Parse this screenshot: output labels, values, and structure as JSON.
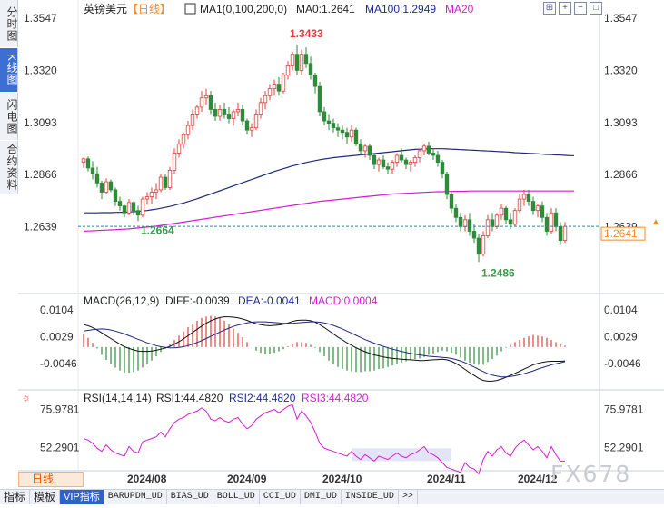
{
  "side_tabs": [
    "分时图",
    "K线图",
    "闪电图",
    "合约资料"
  ],
  "header": {
    "title": "英镑美元",
    "period": "【日线】",
    "ma_label": "MA1(0,100,200,0)",
    "ma0": "MA0:1.2641",
    "ma100": "MA100:1.2949",
    "ma20": "MA20"
  },
  "macd_header": {
    "name": "MACD(26,12,9)",
    "diff": "DIFF:-0.0039",
    "dea": "DEA:-0.0041",
    "macd": "MACD:0.0004"
  },
  "rsi_header": {
    "name": "RSI(14,14,14)",
    "rsi1": "RSI1:44.4820",
    "rsi2": "RSI2:44.4820",
    "rsi3": "RSI3:44.4820"
  },
  "period_button": "日线",
  "watermark": "FX678",
  "bottom_tabs": [
    "指标",
    "模板",
    "VIP指标",
    "BARUPDN_UD",
    "BIAS_UD",
    "BOLL_UD",
    "CCI_UD",
    "DMI_UD",
    "INSIDE_UD",
    ">>"
  ],
  "chart_data": {
    "type": "candlestick",
    "title": "英镑美元",
    "price_ticks": [
      "1.3547",
      "1.3320",
      "1.3093",
      "1.2866",
      "1.2639"
    ],
    "price_range": [
      1.244,
      1.3547
    ],
    "current_price": "1.2641",
    "high_label": "1.3433",
    "low_label": "1.2486",
    "start_low_label": "1.2664",
    "x_labels": [
      "2024/08",
      "2024/09",
      "2024/10",
      "2024/11",
      "2024/12"
    ],
    "candles": [
      [
        1.292,
        1.294,
        1.2895,
        1.2935
      ],
      [
        1.2935,
        1.2945,
        1.288,
        1.2895
      ],
      [
        1.2895,
        1.2925,
        1.2845,
        1.287
      ],
      [
        1.287,
        1.29,
        1.281,
        1.283
      ],
      [
        1.283,
        1.284,
        1.276,
        1.279
      ],
      [
        1.279,
        1.285,
        1.278,
        1.2835
      ],
      [
        1.2835,
        1.2845,
        1.279,
        1.28
      ],
      [
        1.28,
        1.281,
        1.273,
        1.275
      ],
      [
        1.275,
        1.277,
        1.271,
        1.273
      ],
      [
        1.273,
        1.2735,
        1.268,
        1.27
      ],
      [
        1.27,
        1.276,
        1.269,
        1.2745
      ],
      [
        1.2745,
        1.275,
        1.269,
        1.271
      ],
      [
        1.271,
        1.273,
        1.2664,
        1.269
      ],
      [
        1.269,
        1.277,
        1.268,
        1.276
      ],
      [
        1.276,
        1.279,
        1.2735,
        1.277
      ],
      [
        1.277,
        1.281,
        1.274,
        1.279
      ],
      [
        1.279,
        1.283,
        1.276,
        1.28
      ],
      [
        1.28,
        1.287,
        1.279,
        1.2855
      ],
      [
        1.2855,
        1.287,
        1.28,
        1.281
      ],
      [
        1.281,
        1.29,
        1.28,
        1.2885
      ],
      [
        1.2885,
        1.298,
        1.287,
        1.296
      ],
      [
        1.296,
        1.302,
        1.294,
        1.3
      ],
      [
        1.3,
        1.305,
        1.298,
        1.304
      ],
      [
        1.304,
        1.31,
        1.302,
        1.308
      ],
      [
        1.308,
        1.315,
        1.306,
        1.313
      ],
      [
        1.313,
        1.317,
        1.311,
        1.316
      ],
      [
        1.316,
        1.323,
        1.314,
        1.32
      ],
      [
        1.32,
        1.324,
        1.317,
        1.321
      ],
      [
        1.321,
        1.323,
        1.313,
        1.315
      ],
      [
        1.315,
        1.318,
        1.31,
        1.312
      ],
      [
        1.312,
        1.317,
        1.31,
        1.315
      ],
      [
        1.315,
        1.318,
        1.311,
        1.313
      ],
      [
        1.313,
        1.316,
        1.309,
        1.311
      ],
      [
        1.311,
        1.315,
        1.308,
        1.314
      ],
      [
        1.314,
        1.318,
        1.312,
        1.315
      ],
      [
        1.315,
        1.317,
        1.308,
        1.31
      ],
      [
        1.31,
        1.311,
        1.304,
        1.306
      ],
      [
        1.306,
        1.309,
        1.303,
        1.307
      ],
      [
        1.307,
        1.315,
        1.306,
        1.313
      ],
      [
        1.313,
        1.32,
        1.311,
        1.318
      ],
      [
        1.318,
        1.323,
        1.315,
        1.321
      ],
      [
        1.321,
        1.326,
        1.319,
        1.324
      ],
      [
        1.324,
        1.328,
        1.321,
        1.326
      ],
      [
        1.326,
        1.329,
        1.321,
        1.323
      ],
      [
        1.323,
        1.331,
        1.322,
        1.33
      ],
      [
        1.33,
        1.336,
        1.328,
        1.334
      ],
      [
        1.334,
        1.34,
        1.332,
        1.339
      ],
      [
        1.339,
        1.3433,
        1.33,
        1.332
      ],
      [
        1.332,
        1.341,
        1.33,
        1.339
      ],
      [
        1.339,
        1.342,
        1.333,
        1.335
      ],
      [
        1.335,
        1.338,
        1.328,
        1.33
      ],
      [
        1.33,
        1.331,
        1.322,
        1.325
      ],
      [
        1.325,
        1.327,
        1.312,
        1.314
      ],
      [
        1.314,
        1.316,
        1.308,
        1.31
      ],
      [
        1.31,
        1.313,
        1.306,
        1.309
      ],
      [
        1.309,
        1.311,
        1.305,
        1.307
      ],
      [
        1.307,
        1.309,
        1.303,
        1.306
      ],
      [
        1.306,
        1.308,
        1.302,
        1.305
      ],
      [
        1.305,
        1.307,
        1.3,
        1.303
      ],
      [
        1.303,
        1.308,
        1.301,
        1.306
      ],
      [
        1.306,
        1.307,
        1.299,
        1.3
      ],
      [
        1.3,
        1.302,
        1.295,
        1.297
      ],
      [
        1.297,
        1.3,
        1.294,
        1.299
      ],
      [
        1.299,
        1.3,
        1.293,
        1.295
      ],
      [
        1.295,
        1.296,
        1.289,
        1.291
      ],
      [
        1.291,
        1.294,
        1.288,
        1.293
      ],
      [
        1.293,
        1.295,
        1.289,
        1.29
      ],
      [
        1.29,
        1.292,
        1.287,
        1.289
      ],
      [
        1.289,
        1.293,
        1.287,
        1.292
      ],
      [
        1.292,
        1.296,
        1.29,
        1.295
      ],
      [
        1.295,
        1.298,
        1.292,
        1.293
      ],
      [
        1.293,
        1.294,
        1.289,
        1.291
      ],
      [
        1.291,
        1.293,
        1.288,
        1.292
      ],
      [
        1.292,
        1.295,
        1.29,
        1.294
      ],
      [
        1.294,
        1.298,
        1.292,
        1.297
      ],
      [
        1.297,
        1.3,
        1.295,
        1.299
      ],
      [
        1.299,
        1.301,
        1.295,
        1.296
      ],
      [
        1.296,
        1.298,
        1.293,
        1.295
      ],
      [
        1.295,
        1.297,
        1.29,
        1.292
      ],
      [
        1.292,
        1.293,
        1.285,
        1.287
      ],
      [
        1.287,
        1.288,
        1.276,
        1.278
      ],
      [
        1.278,
        1.279,
        1.27,
        1.272
      ],
      [
        1.272,
        1.274,
        1.266,
        1.268
      ],
      [
        1.268,
        1.27,
        1.262,
        1.264
      ],
      [
        1.264,
        1.269,
        1.262,
        1.267
      ],
      [
        1.267,
        1.27,
        1.26,
        1.262
      ],
      [
        1.262,
        1.265,
        1.257,
        1.259
      ],
      [
        1.259,
        1.261,
        1.2486,
        1.252
      ],
      [
        1.252,
        1.262,
        1.251,
        1.26
      ],
      [
        1.26,
        1.269,
        1.259,
        1.267
      ],
      [
        1.267,
        1.27,
        1.262,
        1.264
      ],
      [
        1.264,
        1.27,
        1.263,
        1.269
      ],
      [
        1.269,
        1.274,
        1.267,
        1.272
      ],
      [
        1.272,
        1.273,
        1.265,
        1.267
      ],
      [
        1.267,
        1.27,
        1.263,
        1.265
      ],
      [
        1.265,
        1.272,
        1.264,
        1.271
      ],
      [
        1.271,
        1.278,
        1.27,
        1.276
      ],
      [
        1.276,
        1.28,
        1.273,
        1.278
      ],
      [
        1.278,
        1.28,
        1.273,
        1.275
      ],
      [
        1.275,
        1.277,
        1.269,
        1.271
      ],
      [
        1.271,
        1.274,
        1.268,
        1.273
      ],
      [
        1.273,
        1.275,
        1.266,
        1.268
      ],
      [
        1.268,
        1.27,
        1.26,
        1.262
      ],
      [
        1.262,
        1.272,
        1.261,
        1.27
      ],
      [
        1.27,
        1.272,
        1.262,
        1.264
      ],
      [
        1.264,
        1.266,
        1.256,
        1.258
      ],
      [
        1.258,
        1.266,
        1.257,
        1.2641
      ]
    ],
    "ma100": [
      1.27,
      1.27,
      1.27,
      1.27,
      1.2701,
      1.2701,
      1.2701,
      1.2702,
      1.2702,
      1.2703,
      1.2704,
      1.2705,
      1.2706,
      1.2708,
      1.271,
      1.2713,
      1.2716,
      1.272,
      1.2724,
      1.2728,
      1.2733,
      1.2738,
      1.2743,
      1.2749,
      1.2755,
      1.2761,
      1.2768,
      1.2775,
      1.2782,
      1.2789,
      1.2796,
      1.2803,
      1.281,
      1.2817,
      1.2824,
      1.2831,
      1.2838,
      1.2845,
      1.2852,
      1.2859,
      1.2866,
      1.2873,
      1.288,
      1.2886,
      1.2892,
      1.2898,
      1.2904,
      1.2909,
      1.2914,
      1.2919,
      1.2923,
      1.2927,
      1.2931,
      1.2934,
      1.2937,
      1.294,
      1.2942,
      1.2944,
      1.2946,
      1.2948,
      1.295,
      1.2952,
      1.2954,
      1.2956,
      1.2958,
      1.296,
      1.2962,
      1.2964,
      1.2966,
      1.2968,
      1.297,
      1.2972,
      1.2974,
      1.2976,
      1.2977,
      1.2978,
      1.2979,
      1.2979,
      1.2979,
      1.2979,
      1.2978,
      1.2977,
      1.2976,
      1.2975,
      1.2974,
      1.2973,
      1.2972,
      1.2971,
      1.297,
      1.2969,
      1.2968,
      1.2967,
      1.2966,
      1.2965,
      1.2964,
      1.2962,
      1.2961,
      1.296,
      1.2959,
      1.2958,
      1.2957,
      1.2955,
      1.2954,
      1.2953,
      1.2952,
      1.2951,
      1.295,
      1.2949,
      1.2949
    ],
    "ma200": [
      1.262,
      1.2621,
      1.2622,
      1.2623,
      1.2624,
      1.2625,
      1.2626,
      1.2627,
      1.2628,
      1.2629,
      1.263,
      1.2632,
      1.2634,
      1.2636,
      1.2638,
      1.264,
      1.2642,
      1.2645,
      1.2648,
      1.2651,
      1.2654,
      1.2657,
      1.266,
      1.2663,
      1.2666,
      1.2669,
      1.2672,
      1.2675,
      1.2678,
      1.2681,
      1.2684,
      1.2687,
      1.269,
      1.2693,
      1.2696,
      1.2699,
      1.2702,
      1.2705,
      1.2708,
      1.2711,
      1.2714,
      1.2717,
      1.272,
      1.2723,
      1.2726,
      1.2729,
      1.2732,
      1.2735,
      1.2738,
      1.2741,
      1.2744,
      1.2747,
      1.275,
      1.2752,
      1.2754,
      1.2756,
      1.2758,
      1.276,
      1.2762,
      1.2764,
      1.2766,
      1.2768,
      1.277,
      1.2772,
      1.2774,
      1.2776,
      1.2778,
      1.278,
      1.2782,
      1.2783,
      1.2784,
      1.2785,
      1.2786,
      1.2787,
      1.2788,
      1.2789,
      1.279,
      1.2791,
      1.2792,
      1.2792,
      1.2793,
      1.2793,
      1.2794,
      1.2794,
      1.2794,
      1.2795,
      1.2795,
      1.2795,
      1.2795,
      1.2795,
      1.2795,
      1.2795,
      1.2795,
      1.2795,
      1.2795,
      1.2795,
      1.2795,
      1.2795,
      1.2795,
      1.2795,
      1.2795,
      1.2795,
      1.2795,
      1.2795,
      1.2795,
      1.2795,
      1.2795,
      1.2795,
      1.2795
    ],
    "macd_ticks": [
      "0.0104",
      "0.0029",
      "-0.0046"
    ],
    "macd_range": [
      -0.0118,
      0.0125
    ],
    "macd_diff": [
      0.0063,
      0.006,
      0.0055,
      0.0048,
      0.004,
      0.0032,
      0.0024,
      0.0016,
      0.0008,
      0.0001,
      -0.0004,
      -0.0008,
      -0.0011,
      -0.0012,
      -0.0012,
      -0.0011,
      -0.0009,
      -0.0006,
      -0.0003,
      0.0002,
      0.0008,
      0.0015,
      0.0023,
      0.0032,
      0.0041,
      0.005,
      0.0059,
      0.0067,
      0.0074,
      0.0079,
      0.0083,
      0.0085,
      0.0085,
      0.0084,
      0.0082,
      0.0079,
      0.0075,
      0.007,
      0.0066,
      0.0063,
      0.0061,
      0.006,
      0.0061,
      0.0062,
      0.0064,
      0.0068,
      0.0072,
      0.0075,
      0.0076,
      0.0076,
      0.0074,
      0.007,
      0.0063,
      0.0055,
      0.0046,
      0.0037,
      0.0028,
      0.002,
      0.0012,
      0.0005,
      -0.0002,
      -0.0008,
      -0.0013,
      -0.0018,
      -0.0022,
      -0.0025,
      -0.0028,
      -0.003,
      -0.0032,
      -0.0033,
      -0.0034,
      -0.0035,
      -0.0036,
      -0.0037,
      -0.0038,
      -0.0038,
      -0.0037,
      -0.0036,
      -0.0035,
      -0.0034,
      -0.0036,
      -0.004,
      -0.0046,
      -0.0054,
      -0.0063,
      -0.0072,
      -0.008,
      -0.0088,
      -0.0094,
      -0.0096,
      -0.0096,
      -0.0094,
      -0.009,
      -0.0085,
      -0.008,
      -0.0074,
      -0.0068,
      -0.0062,
      -0.0056,
      -0.005,
      -0.0046,
      -0.0043,
      -0.0041,
      -0.004,
      -0.004,
      -0.004,
      -0.0039
    ],
    "macd_dea": [
      0.0045,
      0.0047,
      0.0049,
      0.005,
      0.0051,
      0.005,
      0.0048,
      0.0045,
      0.0041,
      0.0037,
      0.0032,
      0.0027,
      0.0022,
      0.0017,
      0.0012,
      0.0008,
      0.0004,
      0.0001,
      -0.0001,
      -0.0002,
      -0.0002,
      -0.0001,
      0.0001,
      0.0004,
      0.0008,
      0.0013,
      0.0018,
      0.0024,
      0.003,
      0.0036,
      0.0042,
      0.0048,
      0.0053,
      0.0058,
      0.0062,
      0.0065,
      0.0068,
      0.007,
      0.0071,
      0.0071,
      0.0071,
      0.007,
      0.0069,
      0.0068,
      0.0067,
      0.0067,
      0.0067,
      0.0068,
      0.0069,
      0.007,
      0.0071,
      0.0071,
      0.007,
      0.0068,
      0.0065,
      0.0061,
      0.0056,
      0.0051,
      0.0045,
      0.0039,
      0.0033,
      0.0027,
      0.0021,
      0.0016,
      0.0011,
      0.0006,
      0.0002,
      -0.0002,
      -0.0006,
      -0.0009,
      -0.0012,
      -0.0015,
      -0.0018,
      -0.002,
      -0.0022,
      -0.0024,
      -0.0026,
      -0.0027,
      -0.0028,
      -0.0029,
      -0.003,
      -0.0032,
      -0.0035,
      -0.0039,
      -0.0044,
      -0.005,
      -0.0056,
      -0.0063,
      -0.0069,
      -0.0075,
      -0.0079,
      -0.0082,
      -0.0084,
      -0.0084,
      -0.0083,
      -0.0081,
      -0.0078,
      -0.0075,
      -0.0071,
      -0.0067,
      -0.0062,
      -0.0058,
      -0.0054,
      -0.005,
      -0.0047,
      -0.0044,
      -0.0041
    ],
    "rsi_ticks": [
      "75.9781",
      "52.2901"
    ],
    "rsi_range": [
      38,
      82
    ],
    "rsi": [
      58,
      57,
      55,
      52,
      50,
      54,
      51,
      49,
      48,
      47,
      53,
      50,
      49,
      56,
      57,
      58,
      59,
      62,
      59,
      64,
      68,
      70,
      71,
      73,
      74,
      75,
      77,
      75,
      70,
      69,
      71,
      69,
      68,
      70,
      71,
      67,
      64,
      66,
      70,
      72,
      74,
      75,
      76,
      74,
      76,
      78,
      79,
      70,
      75,
      72,
      68,
      62,
      55,
      52,
      51,
      50,
      49,
      48,
      47,
      50,
      47,
      45,
      48,
      46,
      44,
      47,
      46,
      45,
      47,
      49,
      47,
      46,
      48,
      49,
      51,
      53,
      49,
      48,
      46,
      43,
      40,
      39,
      38,
      37,
      43,
      40,
      39,
      36,
      45,
      50,
      47,
      51,
      53,
      49,
      47,
      52,
      55,
      57,
      54,
      51,
      53,
      50,
      46,
      53,
      48,
      44,
      44
    ],
    "rsi_shaded_range": [
      59,
      81
    ]
  }
}
